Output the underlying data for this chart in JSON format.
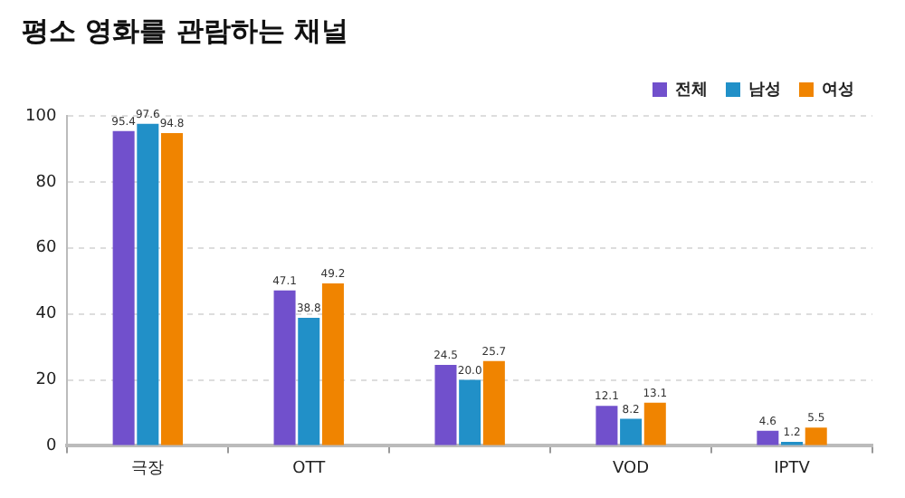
{
  "chart_data": {
    "type": "bar",
    "title": "평소 영화를 관람하는 채널",
    "categories": [
      "극장",
      "OTT",
      null,
      "VOD",
      "IPTV"
    ],
    "series": [
      {
        "name": "전체",
        "color": "#7150cc",
        "values": [
          95.4,
          47.1,
          24.5,
          12.1,
          4.6
        ],
        "value_labels": [
          "95.4",
          "47.1",
          "24.5",
          "12.1",
          "4.6"
        ]
      },
      {
        "name": "남성",
        "color": "#2190c8",
        "values": [
          97.6,
          38.8,
          20.0,
          8.2,
          1.2
        ],
        "value_labels": [
          "97.6",
          "38.8",
          "20.0",
          "8.2",
          "1.2"
        ]
      },
      {
        "name": "여성",
        "color": "#f08400",
        "values": [
          94.8,
          49.2,
          25.7,
          13.1,
          5.5
        ],
        "value_labels": [
          "94.8",
          "49.2",
          "25.7",
          "13.1",
          "5.5"
        ]
      }
    ],
    "ylim": [
      0,
      100
    ],
    "yticks": [
      0,
      20,
      40,
      60,
      80,
      100
    ],
    "grid": "y",
    "legend": "top right"
  }
}
